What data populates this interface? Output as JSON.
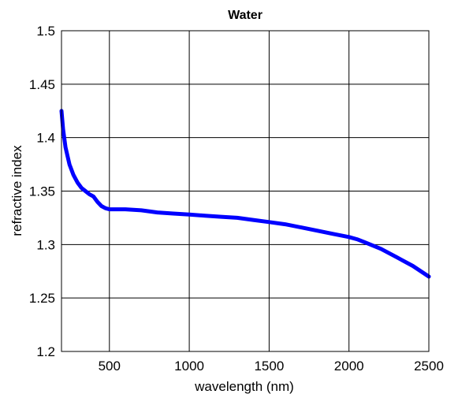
{
  "chart_data": {
    "type": "line",
    "title": "Water",
    "xlabel": "wavelength (nm)",
    "ylabel": "refractive index",
    "xlim": [
      200,
      2500
    ],
    "ylim": [
      1.2,
      1.5
    ],
    "grid": true,
    "legend": "none",
    "xticks": [
      500,
      1000,
      1500,
      2000,
      2500
    ],
    "xtick_labels": [
      "500",
      "1000",
      "1500",
      "2000",
      "2500"
    ],
    "yticks": [
      1.2,
      1.25,
      1.3,
      1.35,
      1.4,
      1.45,
      1.5
    ],
    "ytick_labels": [
      "1.2",
      "1.25",
      "1.3",
      "1.35",
      "1.4",
      "1.45",
      "1.5"
    ],
    "series": [
      {
        "color": "#0000ff",
        "x": [
          200,
          210,
          225,
          250,
          275,
          300,
          325,
          350,
          375,
          400,
          425,
          450,
          475,
          500,
          550,
          600,
          700,
          800,
          900,
          1000,
          1100,
          1200,
          1300,
          1400,
          1500,
          1600,
          1700,
          1800,
          1900,
          2000,
          2050,
          2100,
          2200,
          2300,
          2400,
          2500
        ],
        "y": [
          1.425,
          1.408,
          1.391,
          1.375,
          1.365,
          1.358,
          1.353,
          1.35,
          1.347,
          1.345,
          1.34,
          1.336,
          1.334,
          1.333,
          1.333,
          1.333,
          1.332,
          1.33,
          1.329,
          1.328,
          1.327,
          1.326,
          1.325,
          1.323,
          1.321,
          1.319,
          1.316,
          1.313,
          1.31,
          1.307,
          1.305,
          1.302,
          1.296,
          1.288,
          1.28,
          1.27
        ]
      }
    ]
  }
}
